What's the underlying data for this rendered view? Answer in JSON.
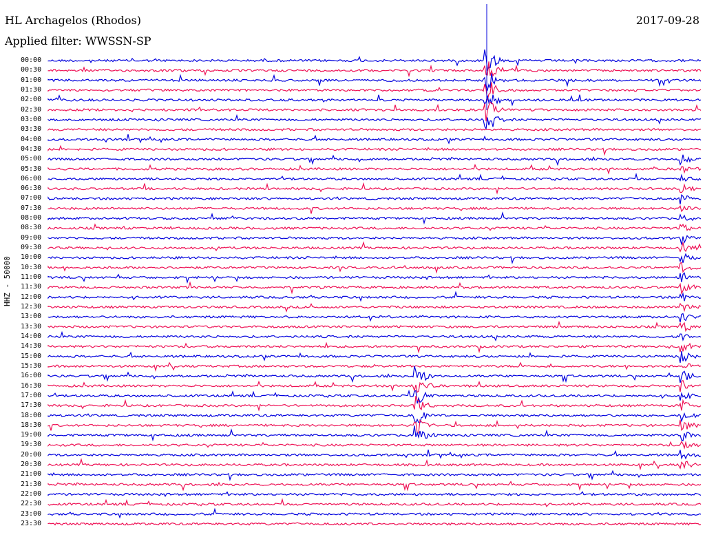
{
  "header": {
    "station": "HL Archagelos (Rhodos)",
    "filter": "Applied filter: WWSSN-SP",
    "date": "2017-09-28"
  },
  "axis_label": "HHZ - 50000",
  "colors": {
    "even_trace": "#0000dd",
    "odd_trace": "#ee1155"
  },
  "time_labels": [
    "00:00",
    "00:30",
    "01:00",
    "01:30",
    "02:00",
    "02:30",
    "03:00",
    "03:30",
    "04:00",
    "04:30",
    "05:00",
    "05:30",
    "06:00",
    "06:30",
    "07:00",
    "07:30",
    "08:00",
    "08:30",
    "09:00",
    "09:30",
    "10:00",
    "10:30",
    "11:00",
    "11:30",
    "12:00",
    "12:30",
    "13:00",
    "13:30",
    "14:00",
    "14:30",
    "15:00",
    "15:30",
    "16:00",
    "16:30",
    "17:00",
    "17:30",
    "18:00",
    "18:30",
    "19:00",
    "19:30",
    "20:00",
    "20:30",
    "21:00",
    "21:30",
    "22:00",
    "22:30",
    "23:00",
    "23:30"
  ]
}
